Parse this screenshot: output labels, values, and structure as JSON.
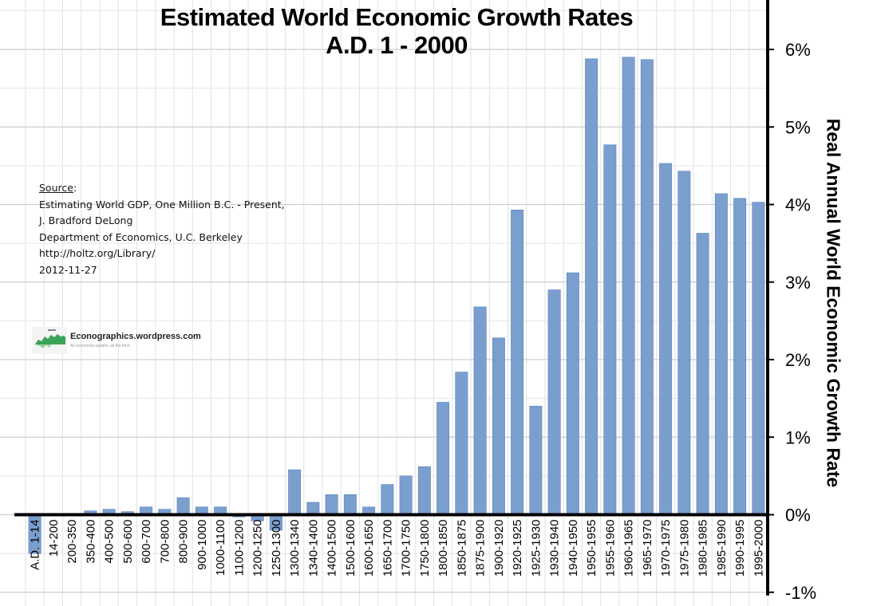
{
  "chart_data": {
    "type": "bar",
    "title": "Estimated World Economic Growth Rates",
    "subtitle": "A.D. 1 - 2000",
    "ylabel": "Real Annual World Economic Growth Rate",
    "xlabel": "",
    "ylim": [
      -1,
      6.5
    ],
    "y_axis_position": "right",
    "y_ticks": [
      "-1%",
      "0%",
      "1%",
      "2%",
      "3%",
      "4%",
      "5%",
      "6%"
    ],
    "y_tick_values": [
      -1,
      0,
      1,
      2,
      3,
      4,
      5,
      6
    ],
    "grid": true,
    "bar_color": "#7a9fcf",
    "categories": [
      "A.D. 1-14",
      "14-200",
      "200-350",
      "350-400",
      "400-500",
      "500-600",
      "600-700",
      "700-800",
      "800-900",
      "900-1000",
      "1000-1100",
      "1100-1200",
      "1200-1250",
      "1250-1300",
      "1300-1340",
      "1340-1400",
      "1400-1500",
      "1500-1600",
      "1600-1650",
      "1650-1700",
      "1700-1750",
      "1750-1800",
      "1800-1850",
      "1850-1875",
      "1875-1900",
      "1900-1920",
      "1920-1925",
      "1925-1930",
      "1930-1940",
      "1940-1950",
      "1950-1955",
      "1955-1960",
      "1960-1965",
      "1965-1970",
      "1970-1975",
      "1975-1980",
      "1980-1985",
      "1985-1990",
      "1990-1995",
      "1995-2000"
    ],
    "values": [
      -0.5,
      0.0,
      0.0,
      0.05,
      0.07,
      0.04,
      0.1,
      0.07,
      0.22,
      0.1,
      0.1,
      -0.03,
      -0.08,
      -0.2,
      0.58,
      0.16,
      0.26,
      0.26,
      0.1,
      0.39,
      0.5,
      0.62,
      1.45,
      1.84,
      2.68,
      2.28,
      3.93,
      1.4,
      2.9,
      3.12,
      5.88,
      4.77,
      5.9,
      5.87,
      4.53,
      4.43,
      3.63,
      4.14,
      4.08,
      4.03
    ]
  },
  "source": {
    "heading": "Source",
    "colon": ":",
    "lines": [
      "Estimating World GDP, One Million B.C. - Present,",
      "J. Bradford DeLong",
      "Department of Economics, U.C. Berkeley",
      "http://holtz.org/Library/",
      "2012-11-27"
    ]
  },
  "logo": {
    "name": "Econographics.wordpress.com",
    "tagline": "All economics graphs, all the time",
    "icon": "mini-area-chart-icon",
    "accent": "#3aa35a"
  }
}
